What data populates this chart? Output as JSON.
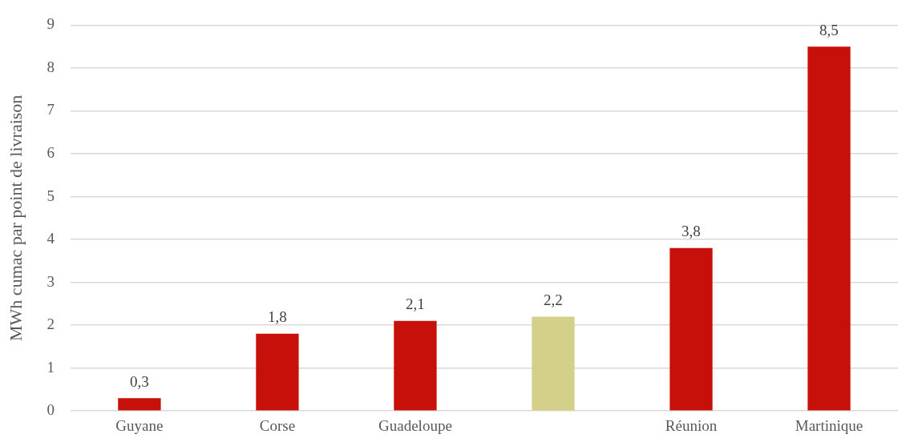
{
  "chart_data": {
    "type": "bar",
    "ylabel": "MWh cumac par point de livraison",
    "categories": [
      "Guyane",
      "Corse",
      "Guadeloupe",
      null,
      "Réunion",
      "Martinique"
    ],
    "values": [
      0.3,
      1.8,
      2.1,
      2.2,
      3.8,
      8.5
    ],
    "colors": [
      "#c8100a",
      "#c8100a",
      "#c8100a",
      "#d4d08a",
      "#c8100a",
      "#c8100a"
    ],
    "value_labels": [
      "0,3",
      "1,8",
      "2,1",
      "2,2",
      "3,8",
      "8,5"
    ],
    "ylim": [
      0,
      9
    ],
    "yticks": [
      0,
      1,
      2,
      3,
      4,
      5,
      6,
      7,
      8,
      9
    ],
    "grid": "y",
    "legend": false
  }
}
